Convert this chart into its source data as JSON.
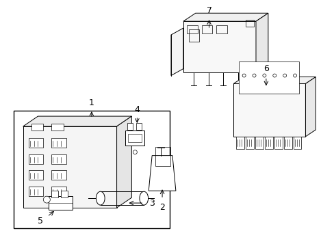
{
  "background_color": "#ffffff",
  "line_color": "#000000",
  "figsize": [
    4.89,
    3.6
  ],
  "dpi": 100,
  "font_size": 9,
  "lw": 0.7
}
